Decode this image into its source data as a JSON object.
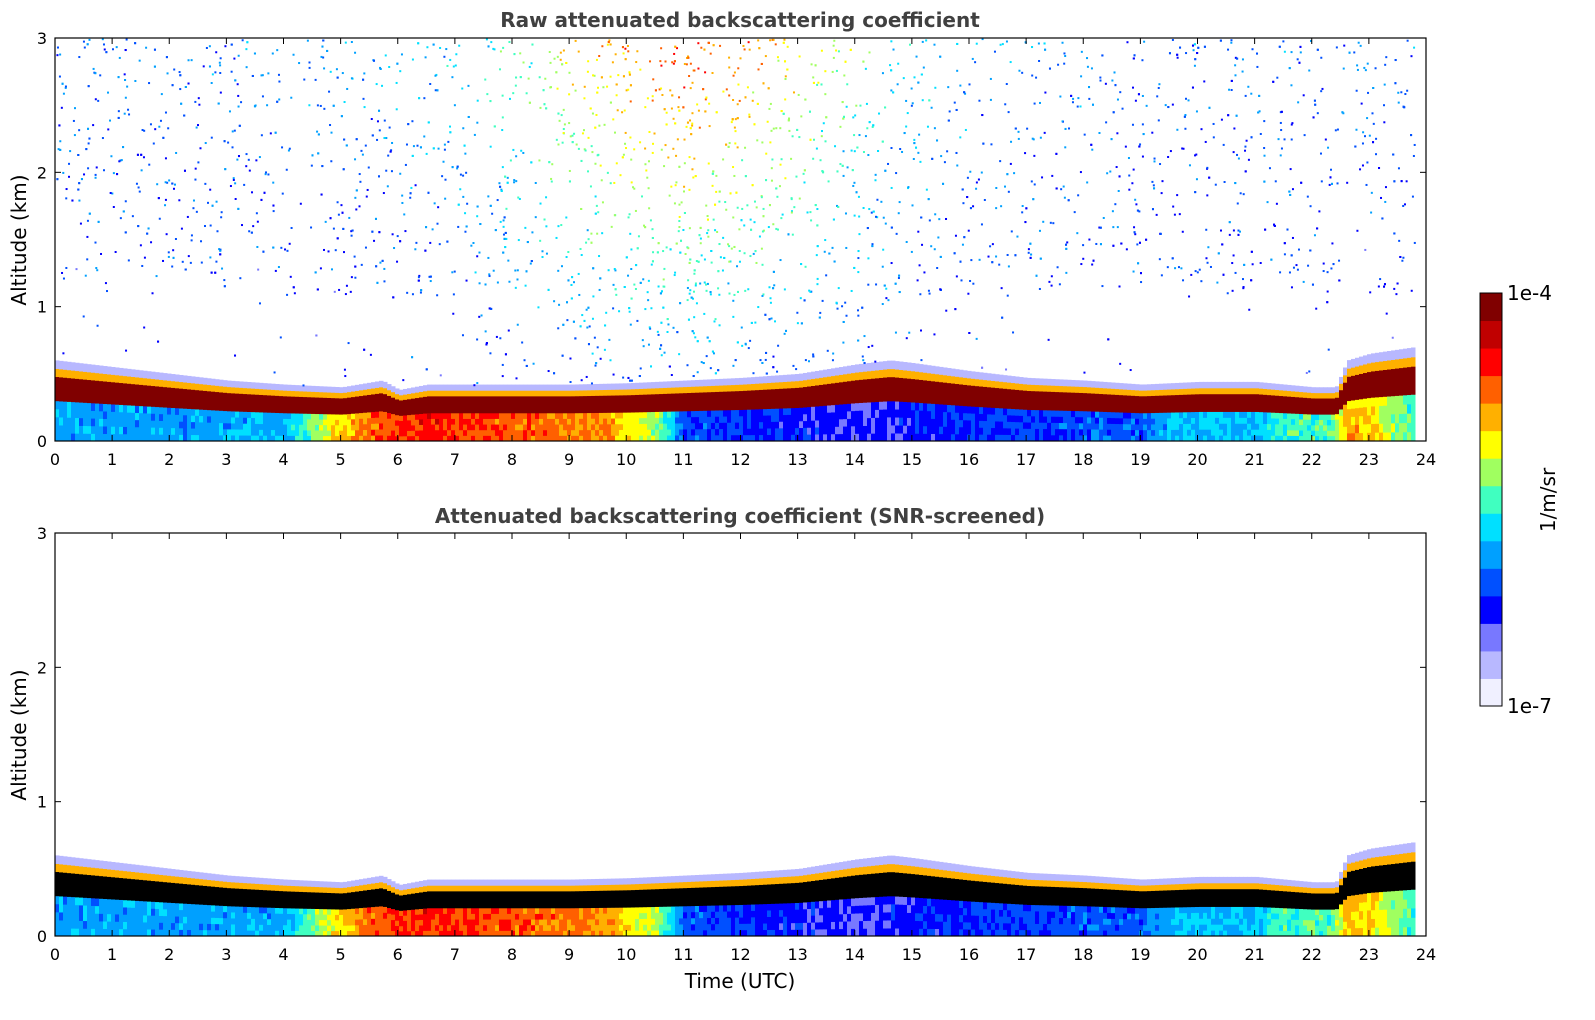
{
  "colors": {
    "colormap": [
      "#f0f0ff",
      "#b8b8ff",
      "#7878ff",
      "#0000ff",
      "#0050ff",
      "#00a0ff",
      "#00e0ff",
      "#40ffc0",
      "#a0ff60",
      "#ffff00",
      "#ffb000",
      "#ff6000",
      "#ff0000",
      "#c00000",
      "#800000"
    ],
    "background": "#ffffff"
  },
  "colorbar": {
    "max_label": "1e-4",
    "min_label": "1e-7",
    "unit_label": "1/m/sr",
    "log_min": -7,
    "log_max": -4
  },
  "chart_data": [
    {
      "type": "heatmap",
      "title": "Raw attenuated backscattering coefficient",
      "xlabel": "",
      "ylabel": "Altitude (km)",
      "xlim": [
        0,
        24
      ],
      "ylim": [
        0,
        3
      ],
      "xticks": [
        "0",
        "1",
        "2",
        "3",
        "4",
        "5",
        "6",
        "7",
        "8",
        "9",
        "10",
        "11",
        "12",
        "13",
        "14",
        "15",
        "16",
        "17",
        "18",
        "19",
        "20",
        "21",
        "22",
        "23",
        "24"
      ],
      "yticks": [
        "0",
        "1",
        "2",
        "3"
      ],
      "screened": false,
      "data_end_hour": 23.8,
      "layer_top_km": {
        "x": [
          0,
          1,
          2,
          3,
          4,
          5,
          5.7,
          6,
          6.5,
          7,
          8,
          9,
          10,
          11,
          12,
          13,
          14,
          14.6,
          15,
          16,
          17,
          18,
          19,
          20,
          21,
          22,
          22.4,
          22.6,
          23,
          23.8
        ],
        "y": [
          0.6,
          0.55,
          0.5,
          0.45,
          0.42,
          0.4,
          0.45,
          0.38,
          0.42,
          0.42,
          0.42,
          0.42,
          0.43,
          0.45,
          0.47,
          0.5,
          0.57,
          0.6,
          0.58,
          0.52,
          0.47,
          0.45,
          0.42,
          0.44,
          0.44,
          0.4,
          0.4,
          0.6,
          0.65,
          0.7
        ]
      },
      "near_surface_signal_log": {
        "x": [
          0,
          2,
          4,
          4.8,
          5.5,
          6.5,
          8,
          9.5,
          10.5,
          11,
          12,
          13,
          14,
          15,
          16,
          17,
          18,
          19,
          19.5,
          21,
          21.5,
          22.3,
          22.6,
          23,
          23.8
        ],
        "y": [
          -5.9,
          -5.9,
          -5.85,
          -5.1,
          -4.7,
          -4.5,
          -4.7,
          -4.8,
          -5.3,
          -6.1,
          -6.2,
          -6.3,
          -6.4,
          -6.3,
          -6.2,
          -6.15,
          -6.1,
          -6.1,
          -5.8,
          -5.8,
          -5.5,
          -5.5,
          -4.9,
          -5.0,
          -5.6
        ]
      }
    },
    {
      "type": "heatmap",
      "title": "Attenuated backscattering coefficient (SNR-screened)",
      "xlabel": "Time (UTC)",
      "ylabel": "Altitude (km)",
      "xlim": [
        0,
        24
      ],
      "ylim": [
        0,
        3
      ],
      "xticks": [
        "0",
        "1",
        "2",
        "3",
        "4",
        "5",
        "6",
        "7",
        "8",
        "9",
        "10",
        "11",
        "12",
        "13",
        "14",
        "15",
        "16",
        "17",
        "18",
        "19",
        "20",
        "21",
        "22",
        "23",
        "24"
      ],
      "yticks": [
        "0",
        "1",
        "2",
        "3"
      ],
      "screened": true,
      "data_end_hour": 23.8,
      "layer_top_km": {
        "x": [
          0,
          1,
          2,
          3,
          4,
          5,
          5.7,
          6,
          6.5,
          7,
          8,
          9,
          10,
          11,
          12,
          13,
          14,
          14.6,
          15,
          16,
          17,
          18,
          19,
          20,
          21,
          22,
          22.4,
          22.6,
          23,
          23.8
        ],
        "y": [
          0.6,
          0.55,
          0.5,
          0.45,
          0.42,
          0.4,
          0.45,
          0.38,
          0.42,
          0.42,
          0.42,
          0.42,
          0.43,
          0.45,
          0.47,
          0.5,
          0.57,
          0.6,
          0.58,
          0.52,
          0.47,
          0.45,
          0.42,
          0.44,
          0.44,
          0.4,
          0.4,
          0.6,
          0.65,
          0.7
        ]
      },
      "near_surface_signal_log": {
        "x": [
          0,
          2,
          4,
          4.8,
          5.5,
          6.5,
          8,
          9.5,
          10.5,
          11,
          12,
          13,
          14,
          15,
          16,
          17,
          18,
          19,
          19.5,
          21,
          21.5,
          22.3,
          22.6,
          23,
          23.8
        ],
        "y": [
          -5.9,
          -5.9,
          -5.85,
          -5.1,
          -4.7,
          -4.5,
          -4.7,
          -4.8,
          -5.3,
          -6.1,
          -6.2,
          -6.3,
          -6.4,
          -6.3,
          -6.2,
          -6.15,
          -6.1,
          -6.1,
          -5.8,
          -5.8,
          -5.5,
          -5.5,
          -4.9,
          -5.0,
          -5.6
        ]
      }
    }
  ]
}
